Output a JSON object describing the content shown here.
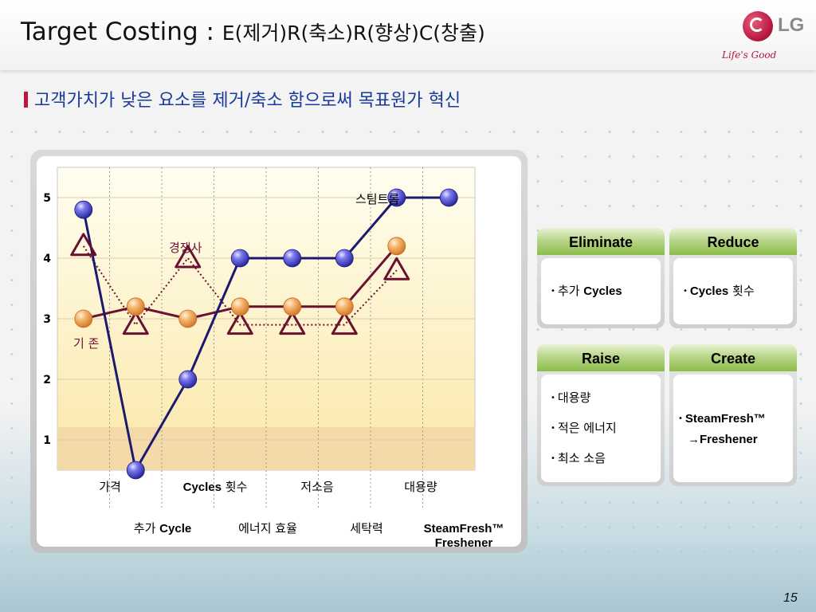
{
  "header": {
    "title_main": "Target Costing : ",
    "title_sub": "E(제거)R(축소)R(향상)C(창출)",
    "logo_text": "LG",
    "logo_slogan": "Life's Good"
  },
  "subtitle": "고객가치가 낮은 요소를 제거/축소 함으로써 목표원가 혁신",
  "chart_data": {
    "type": "line",
    "categories": [
      "가격",
      "추가 Cycle",
      "Cycles 횟수",
      "에너지 효율",
      "저소음",
      "세탁력",
      "대용량",
      "SteamFresh™ Freshener"
    ],
    "y_ticks": [
      1,
      2,
      3,
      4,
      5
    ],
    "ylim": [
      0.5,
      5.5
    ],
    "series": [
      {
        "name": "스팀트롬",
        "values": [
          4.8,
          0.5,
          2.0,
          4.0,
          4.0,
          4.0,
          5.0,
          5.0
        ]
      },
      {
        "name": "경쟁사",
        "values": [
          4.2,
          2.9,
          4.0,
          2.9,
          2.9,
          2.9,
          3.8,
          null
        ]
      },
      {
        "name": "기 존",
        "values": [
          3.0,
          3.2,
          3.0,
          3.2,
          3.2,
          3.2,
          4.2,
          null
        ]
      }
    ],
    "colors": {
      "스팀트롬": "#1a1a6e",
      "경쟁사": "#6a1030",
      "기 존": "#6a1030"
    }
  },
  "chart_labels": {
    "row1": [
      "가격",
      "Cycles 횟수",
      "저소음",
      "대용량"
    ],
    "row2_a": {
      "prefix": "추가 ",
      "bold": "Cycle"
    },
    "row2": [
      "에너지 효율",
      "세탁력"
    ],
    "cycles_bold": "Cycles",
    "cycles_suffix": " 횟수",
    "steam_line1": "SteamFresh™",
    "steam_line2": "Freshener"
  },
  "cards": {
    "eliminate": {
      "title": "Eliminate",
      "items": [
        {
          "prefix": "추가 ",
          "bold": "Cycles"
        }
      ]
    },
    "reduce": {
      "title": "Reduce",
      "items": [
        {
          "bold": "Cycles",
          "suffix": " 횟수"
        }
      ]
    },
    "raise": {
      "title": "Raise",
      "items": [
        "대용량",
        "적은 에너지",
        "최소 소음"
      ]
    },
    "create": {
      "title": "Create",
      "items": [
        "SteamFresh™",
        "→Freshener"
      ]
    }
  },
  "page_number": "15"
}
